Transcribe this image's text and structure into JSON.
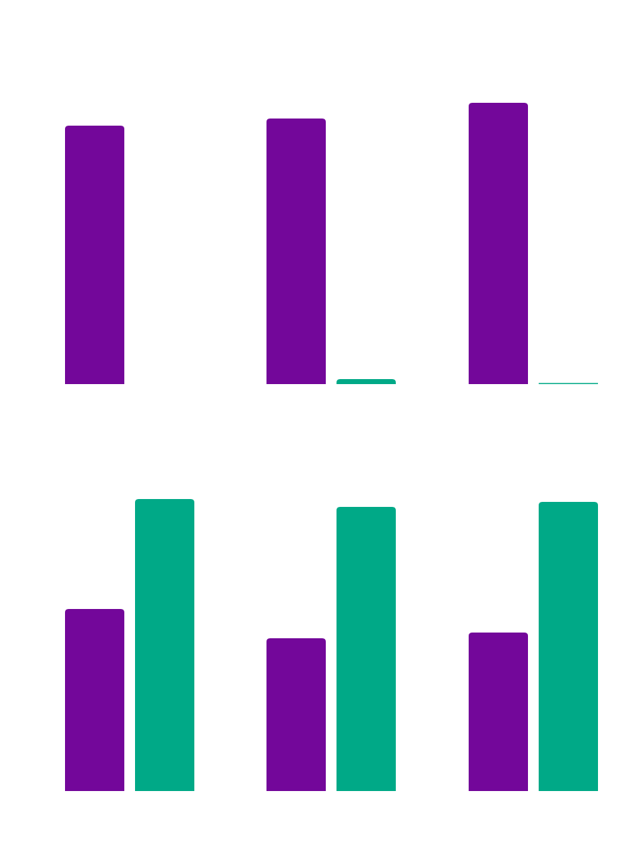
{
  "colors": {
    "series_a": "#73079a",
    "series_b": "#00a987",
    "background": "#ffffff"
  },
  "chart_data": [
    {
      "type": "bar",
      "categories": [
        "",
        "",
        ""
      ],
      "series": [
        {
          "color": "#73079a",
          "values": [
            362,
            372,
            394
          ]
        },
        {
          "color": "#00a987",
          "values": [
            0,
            7,
            1
          ]
        }
      ],
      "ylim": [
        0,
        400
      ],
      "grid": false,
      "legend": "none"
    },
    {
      "type": "bar",
      "categories": [
        "",
        "",
        ""
      ],
      "series": [
        {
          "color": "#73079a",
          "values": [
            255,
            214,
            222
          ]
        },
        {
          "color": "#00a987",
          "values": [
            409,
            398,
            405
          ]
        }
      ],
      "ylim": [
        0,
        420
      ],
      "grid": false,
      "legend": "none"
    }
  ]
}
